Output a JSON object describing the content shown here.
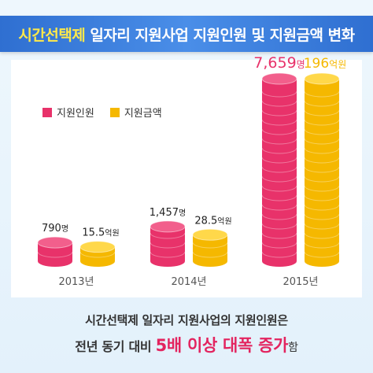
{
  "header": {
    "title_highlight": "시간선택제",
    "title_rest": " 일자리 지원사업 지원인원 및 지원금액 변화"
  },
  "legend": {
    "people_label": "지원인원",
    "amount_label": "지원금액"
  },
  "colors": {
    "people": "#e8326a",
    "people_top": "#f25f8c",
    "amount": "#f5b800",
    "amount_top": "#ffd84a",
    "year_label": "#555555"
  },
  "chart_data": {
    "type": "bar",
    "categories": [
      "2013년",
      "2014년",
      "2015년"
    ],
    "series": [
      {
        "name": "지원인원",
        "values": [
          790,
          1457,
          7659
        ],
        "labels": [
          {
            "num": "790",
            "unit": "명"
          },
          {
            "num": "1,457",
            "unit": "명"
          },
          {
            "num": "7,659",
            "unit": "명"
          }
        ]
      },
      {
        "name": "지원금액",
        "values": [
          15.5,
          28.5,
          196
        ],
        "labels": [
          {
            "num": "15.5",
            "unit": "억원"
          },
          {
            "num": "28.5",
            "unit": "억원"
          },
          {
            "num": "196",
            "unit": "억원"
          }
        ]
      }
    ]
  },
  "footer": {
    "line1": "시간선택제 일자리 지원사업의 지원인원은",
    "line2_pre": "전년 동기 대비 ",
    "line2_emph": "5배 이상 대폭 증가",
    "line2_post": "함"
  }
}
